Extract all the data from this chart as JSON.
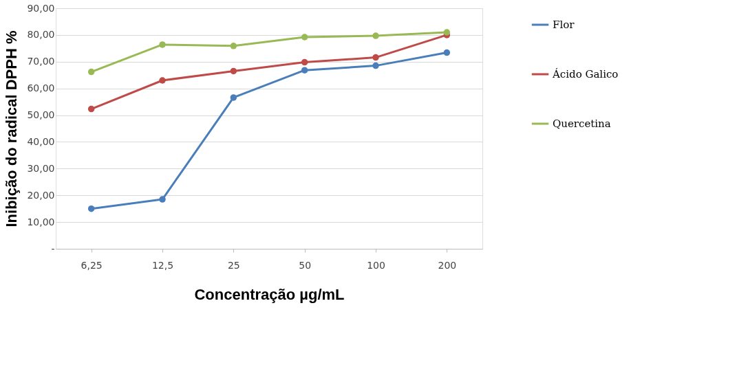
{
  "chart_data": {
    "type": "line",
    "xlabel": "Concentração µg/mL",
    "ylabel": "Inibição do radical DPPH %",
    "categories": [
      "6,25",
      "12,5",
      "25",
      "50",
      "100",
      "200"
    ],
    "series": [
      {
        "name": "Flor",
        "color": "#4a7ebb",
        "values": [
          15.0,
          18.5,
          56.6,
          66.8,
          68.5,
          73.4
        ]
      },
      {
        "name": "Ácido Galico",
        "color": "#be4b48",
        "values": [
          52.3,
          63.0,
          66.5,
          69.8,
          71.6,
          80.0
        ]
      },
      {
        "name": "Quercetina",
        "color": "#98b954",
        "values": [
          66.2,
          76.4,
          75.9,
          79.2,
          79.7,
          81.0
        ]
      }
    ],
    "ylim": [
      0,
      90
    ],
    "yticks": [
      {
        "value": 0,
        "label": "-"
      },
      {
        "value": 10,
        "label": "10,00"
      },
      {
        "value": 20,
        "label": "20,00"
      },
      {
        "value": 30,
        "label": "30,00"
      },
      {
        "value": 40,
        "label": "40,00"
      },
      {
        "value": 50,
        "label": "50,00"
      },
      {
        "value": 60,
        "label": "60,00"
      },
      {
        "value": 70,
        "label": "70,00"
      },
      {
        "value": 80,
        "label": "80,00"
      },
      {
        "value": 90,
        "label": "90,00"
      }
    ],
    "grid": "y",
    "legend": "right",
    "marker": "circle",
    "line_style": "solid"
  }
}
